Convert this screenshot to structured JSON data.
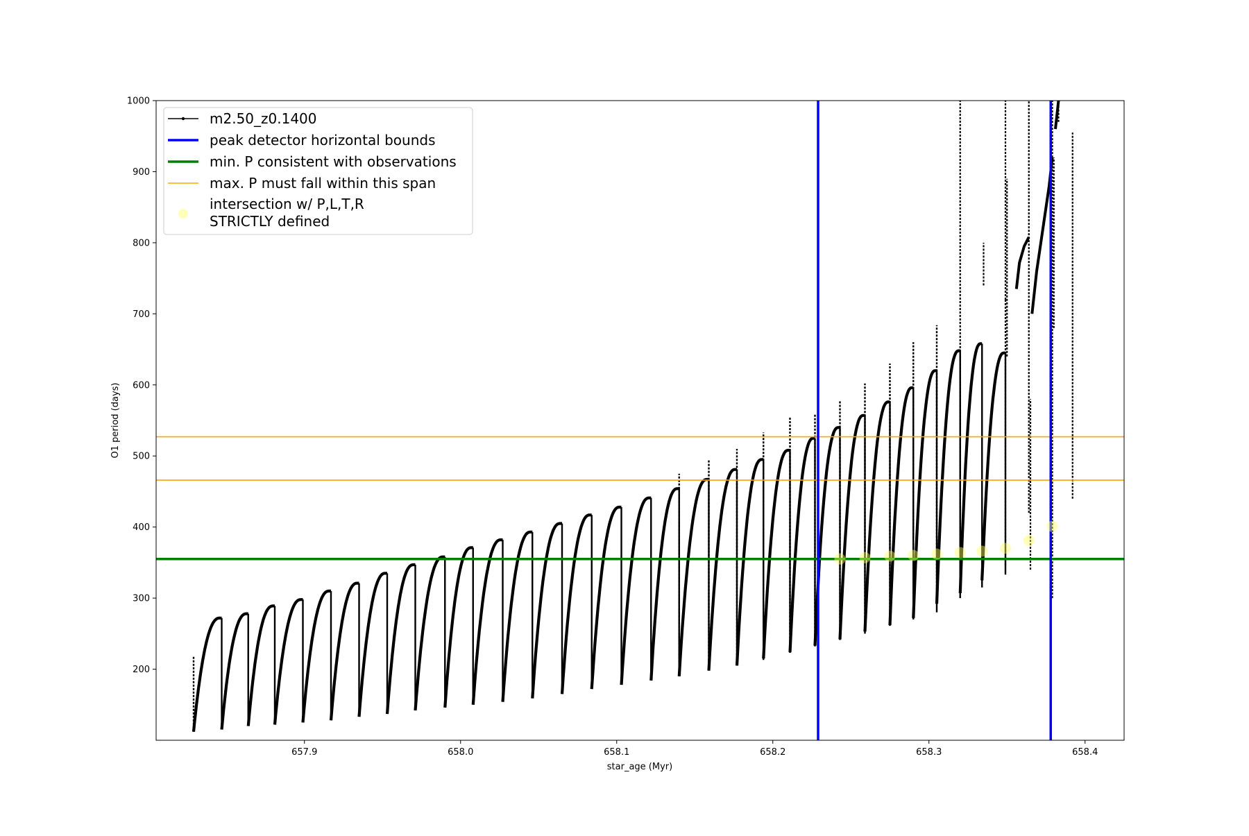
{
  "chart_data": {
    "type": "line",
    "title": "",
    "xlabel": "star_age (Myr)",
    "ylabel": "O1 period (days)",
    "xlim": [
      657.805,
      658.425
    ],
    "ylim": [
      100,
      1000
    ],
    "xticks": [
      657.9,
      658.0,
      658.1,
      658.2,
      658.3,
      658.4
    ],
    "xtick_labels": [
      "657.9",
      "658.0",
      "658.1",
      "658.2",
      "658.3",
      "658.4"
    ],
    "yticks": [
      200,
      300,
      400,
      500,
      600,
      700,
      800,
      900,
      1000
    ],
    "ytick_labels": [
      "200",
      "300",
      "400",
      "500",
      "600",
      "700",
      "800",
      "900",
      "1000"
    ],
    "grid": false,
    "legend_position": "upper-left",
    "legend": [
      {
        "label": "m2.50_z0.1400",
        "color": "#000000",
        "style": "line-with-dot"
      },
      {
        "label": "peak detector horizontal bounds",
        "color": "#0000ff",
        "style": "thick-line"
      },
      {
        "label": "min. P consistent with observations",
        "color": "#008000",
        "style": "thick-line"
      },
      {
        "label": "max. P must fall within this span",
        "color": "#ffa500",
        "style": "thin-line"
      },
      {
        "label_lines": [
          "intersection w/ P,L,T,R",
          "STRICTLY defined"
        ],
        "color": "#ffff66",
        "style": "marker"
      }
    ],
    "series": [
      {
        "name": "m2.50_z0.1400",
        "color": "#000000",
        "cycles": [
          {
            "start": 657.829,
            "end": 657.847,
            "min": 112,
            "max": 272,
            "spike": 218
          },
          {
            "start": 657.847,
            "end": 657.864,
            "min": 115,
            "max": 278
          },
          {
            "start": 657.864,
            "end": 657.881,
            "min": 120,
            "max": 289
          },
          {
            "start": 657.881,
            "end": 657.899,
            "min": 122,
            "max": 298
          },
          {
            "start": 657.899,
            "end": 657.917,
            "min": 125,
            "max": 310
          },
          {
            "start": 657.917,
            "end": 657.935,
            "min": 128,
            "max": 321
          },
          {
            "start": 657.935,
            "end": 657.953,
            "min": 133,
            "max": 335
          },
          {
            "start": 657.953,
            "end": 657.971,
            "min": 137,
            "max": 347
          },
          {
            "start": 657.971,
            "end": 657.99,
            "min": 142,
            "max": 358
          },
          {
            "start": 657.99,
            "end": 658.008,
            "min": 146,
            "max": 371
          },
          {
            "start": 658.008,
            "end": 658.027,
            "min": 150,
            "max": 382
          },
          {
            "start": 658.027,
            "end": 658.046,
            "min": 154,
            "max": 393
          },
          {
            "start": 658.046,
            "end": 658.065,
            "min": 159,
            "max": 405
          },
          {
            "start": 658.065,
            "end": 658.084,
            "min": 165,
            "max": 417
          },
          {
            "start": 658.084,
            "end": 658.103,
            "min": 172,
            "max": 428
          },
          {
            "start": 658.103,
            "end": 658.122,
            "min": 178,
            "max": 441
          },
          {
            "start": 658.122,
            "end": 658.14,
            "min": 184,
            "max": 454
          },
          {
            "start": 658.14,
            "end": 658.159,
            "min": 190,
            "max": 467,
            "spike": 475
          },
          {
            "start": 658.159,
            "end": 658.177,
            "min": 198,
            "max": 481,
            "spike": 495
          },
          {
            "start": 658.177,
            "end": 658.194,
            "min": 205,
            "max": 495,
            "spike": 510
          },
          {
            "start": 658.194,
            "end": 658.211,
            "min": 215,
            "max": 508,
            "spike": 533
          },
          {
            "start": 658.211,
            "end": 658.227,
            "min": 224,
            "max": 525,
            "spike": 555
          },
          {
            "start": 658.227,
            "end": 658.243,
            "min": 233,
            "max": 540,
            "spike": 560
          },
          {
            "start": 658.243,
            "end": 658.259,
            "min": 242,
            "max": 557,
            "spike": 578
          },
          {
            "start": 658.259,
            "end": 658.275,
            "min": 253,
            "max": 576,
            "spike": 602
          },
          {
            "start": 658.275,
            "end": 658.29,
            "min": 262,
            "max": 596,
            "spike": 630
          },
          {
            "start": 658.29,
            "end": 658.305,
            "min": 272,
            "max": 620,
            "spike": 660
          },
          {
            "start": 658.305,
            "end": 658.32,
            "min": 292,
            "max": 648,
            "spike": 684
          },
          {
            "start": 658.32,
            "end": 658.334,
            "min": 307,
            "max": 658
          },
          {
            "start": 658.334,
            "end": 658.349,
            "min": 325,
            "max": 645
          }
        ],
        "tail_columns": [
          {
            "x": 658.32,
            "y_low": 310,
            "y_high": 1000
          },
          {
            "x": 658.335,
            "y_low": 740,
            "y_high": 800
          },
          {
            "x": 658.349,
            "y_low": 346,
            "y_high": 720
          },
          {
            "x": 658.349,
            "y_low": 720,
            "y_high": 1000
          },
          {
            "x": 658.35,
            "y_low": 640,
            "y_high": 890
          },
          {
            "x": 658.364,
            "y_low": 420,
            "y_high": 1000
          },
          {
            "x": 658.365,
            "y_low": 340,
            "y_high": 580
          },
          {
            "x": 658.379,
            "y_low": 300,
            "y_high": 1000
          },
          {
            "x": 658.38,
            "y_low": 680,
            "y_high": 920
          },
          {
            "x": 658.392,
            "y_low": 440,
            "y_high": 955
          },
          {
            "x": 658.383,
            "y_low": 970,
            "y_high": 1000
          }
        ],
        "tail_branches": [
          {
            "x": [
              658.356,
              658.358,
              658.361,
              658.364
            ],
            "y": [
              735,
              772,
              795,
              808
            ]
          },
          {
            "x": [
              658.366,
              658.369,
              658.373,
              658.377,
              658.379
            ],
            "y": [
              700,
              760,
              820,
              880,
              920
            ]
          },
          {
            "x": [
              658.381,
              658.383
            ],
            "y": [
              960,
              1000
            ]
          }
        ]
      }
    ],
    "hlines": [
      {
        "label": "min. P consistent with observations",
        "y": 355,
        "color": "#008000"
      },
      {
        "label": "max. P must fall within this span",
        "y": 466,
        "color": "#ffa500"
      },
      {
        "label": "max. P must fall within this span",
        "y": 527,
        "color": "#ffa500"
      }
    ],
    "vlines": [
      {
        "label": "peak detector horizontal bounds",
        "x": 658.229,
        "color": "#0000ff"
      },
      {
        "label": "peak detector horizontal bounds",
        "x": 658.378,
        "color": "#0000ff"
      }
    ],
    "intersections": [
      {
        "x": 658.243,
        "y": 355
      },
      {
        "x": 658.259,
        "y": 357
      },
      {
        "x": 658.275,
        "y": 359
      },
      {
        "x": 658.29,
        "y": 360
      },
      {
        "x": 658.305,
        "y": 362
      },
      {
        "x": 658.32,
        "y": 364
      },
      {
        "x": 658.334,
        "y": 366
      },
      {
        "x": 658.349,
        "y": 370
      },
      {
        "x": 658.364,
        "y": 381
      },
      {
        "x": 658.379,
        "y": 401
      }
    ]
  }
}
